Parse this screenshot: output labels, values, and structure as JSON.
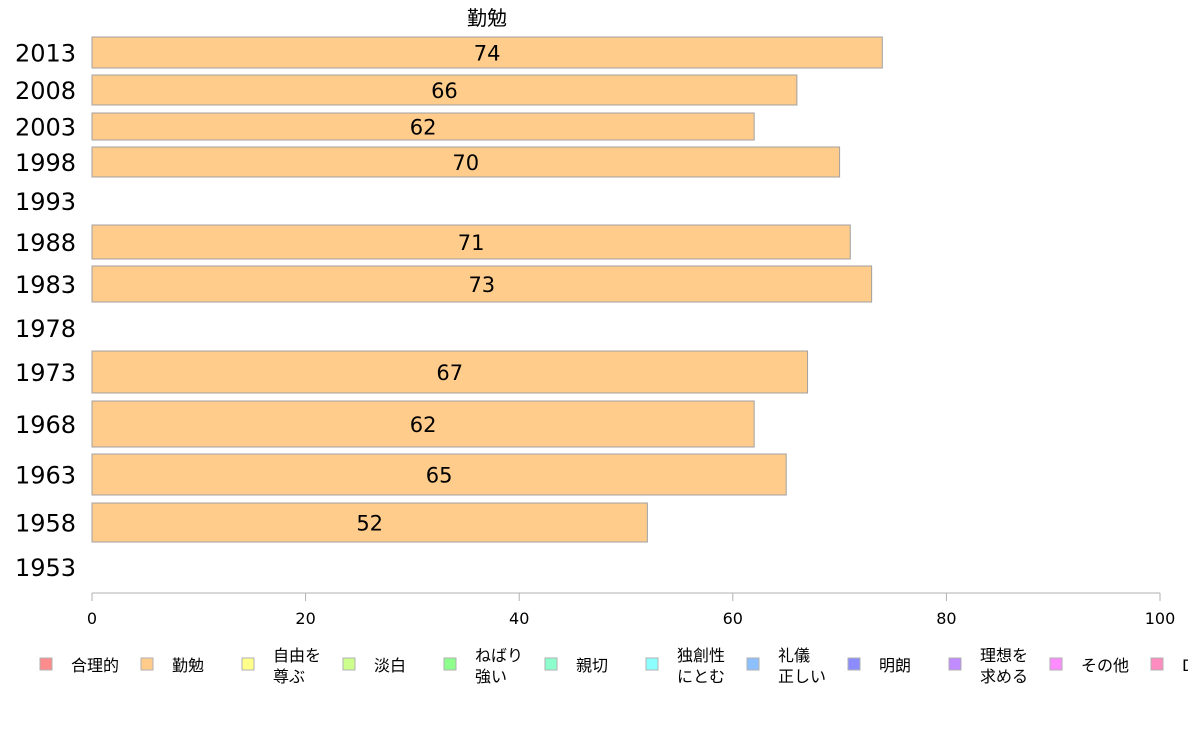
{
  "chart_data": {
    "type": "bar",
    "orientation": "horizontal",
    "title": "勤勉",
    "categories": [
      "2013",
      "2008",
      "2003",
      "1998",
      "1993",
      "1988",
      "1983",
      "1978",
      "1973",
      "1968",
      "1963",
      "1958",
      "1953"
    ],
    "series": [
      {
        "name": "勤勉",
        "color": "#ffcc8c",
        "values": [
          74,
          66,
          62,
          70,
          null,
          71,
          73,
          null,
          67,
          62,
          65,
          52,
          null
        ]
      }
    ],
    "xlim": [
      0,
      100
    ],
    "xticks": [
      0,
      20,
      40,
      60,
      80,
      100
    ],
    "grid": false,
    "legend_position": "bottom",
    "legend": [
      {
        "label": [
          "合理的"
        ],
        "color": "#ff8c8c"
      },
      {
        "label": [
          "勤勉"
        ],
        "color": "#ffcc8c"
      },
      {
        "label": [
          "自由を",
          "尊ぶ"
        ],
        "color": "#ffff8c"
      },
      {
        "label": [
          "淡白"
        ],
        "color": "#ccff8c"
      },
      {
        "label": [
          "ねばり",
          "強い"
        ],
        "color": "#8cff8c"
      },
      {
        "label": [
          "親切"
        ],
        "color": "#8cffcc"
      },
      {
        "label": [
          "独創性",
          "にとむ"
        ],
        "color": "#8cffff"
      },
      {
        "label": [
          "礼儀",
          "正しい"
        ],
        "color": "#8cc0ff"
      },
      {
        "label": [
          "明朗"
        ],
        "color": "#8c8cff"
      },
      {
        "label": [
          "理想を",
          "求める"
        ],
        "color": "#c08cff"
      },
      {
        "label": [
          "その他"
        ],
        "color": "#ff8cff"
      },
      {
        "label": [
          "D"
        ],
        "color": "#ff8cc0"
      }
    ]
  }
}
